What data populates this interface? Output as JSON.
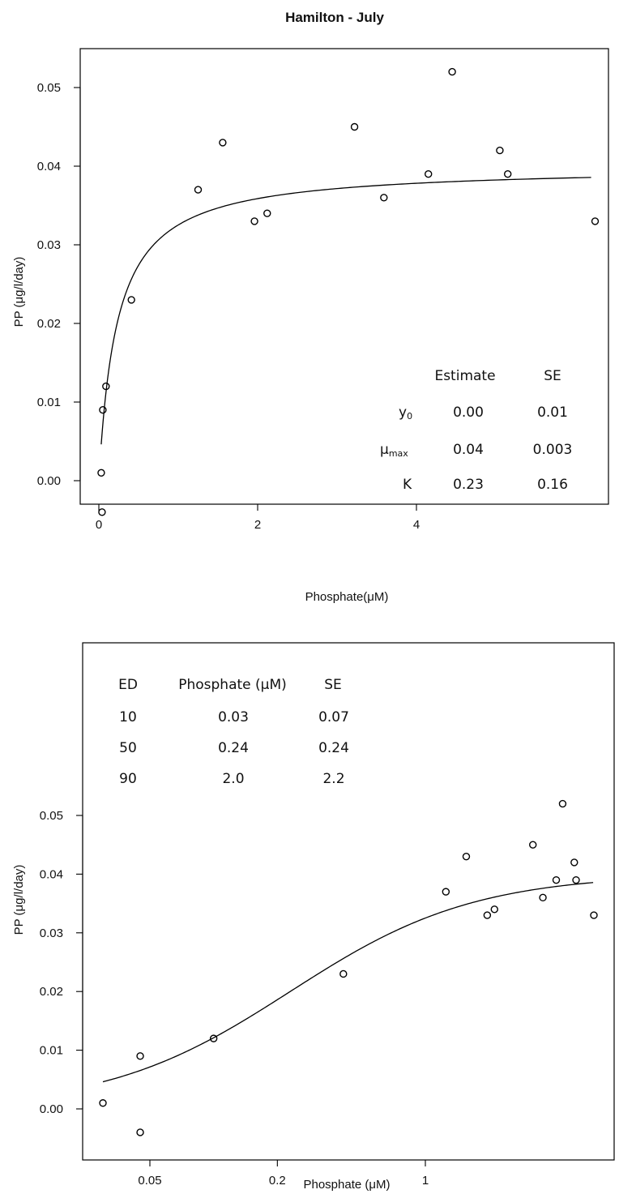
{
  "figure_title": "Hamilton - July",
  "chart_data": [
    {
      "type": "scatter",
      "title": "Hamilton - July",
      "xlabel": "Phosphate(μM)",
      "ylabel": "PP (μg/l/day)",
      "x_scale": "linear",
      "xlim": [
        -0.2,
        6.3
      ],
      "ylim": [
        -0.006,
        0.055
      ],
      "x_ticks": [
        {
          "value": 0,
          "label": "0"
        },
        {
          "value": 2,
          "label": "2"
        },
        {
          "value": 4,
          "label": "4"
        }
      ],
      "y_ticks": [
        {
          "value": 0.0,
          "label": "0.00"
        },
        {
          "value": 0.01,
          "label": "0.01"
        },
        {
          "value": 0.02,
          "label": "0.02"
        },
        {
          "value": 0.03,
          "label": "0.03"
        },
        {
          "value": 0.04,
          "label": "0.04"
        },
        {
          "value": 0.05,
          "label": "0.05"
        }
      ],
      "points": {
        "x": [
          0.03,
          0.04,
          0.05,
          0.09,
          0.41,
          1.25,
          1.56,
          1.96,
          2.12,
          3.22,
          3.59,
          4.15,
          4.45,
          5.05,
          5.15,
          6.25
        ],
        "y": [
          0.001,
          -0.004,
          0.009,
          0.012,
          0.023,
          0.037,
          0.043,
          0.033,
          0.034,
          0.045,
          0.036,
          0.039,
          0.052,
          0.042,
          0.039,
          0.033
        ]
      },
      "fit_curve": {
        "model": "michaelis-menten",
        "y0": 0.0,
        "mu_max": 0.04,
        "K": 0.23,
        "x_range": [
          0.03,
          6.2
        ]
      },
      "table": {
        "headers": [
          "",
          "Estimate",
          "SE"
        ],
        "rows": [
          {
            "param": "y0",
            "param_main": "y",
            "param_sub": "0",
            "estimate": "0.00",
            "se": "0.01"
          },
          {
            "param": "μmax",
            "param_main": "μ",
            "param_sub": "max",
            "estimate": "0.04",
            "se": "0.003"
          },
          {
            "param": "K",
            "param_main": "K",
            "param_sub": "",
            "estimate": "0.23",
            "se": "0.16"
          }
        ]
      }
    },
    {
      "type": "scatter",
      "title": "",
      "xlabel": "Phosphate (μM)",
      "ylabel": "PP (μg/l/day)",
      "x_scale": "log",
      "xlim": [
        0.02,
        5.0
      ],
      "ylim": [
        -0.006,
        0.055
      ],
      "x_ticks": [
        {
          "value": 0.05,
          "label": "0.05"
        },
        {
          "value": 0.2,
          "label": "0.2"
        },
        {
          "value": 1,
          "label": "1"
        }
      ],
      "y_ticks": [
        {
          "value": 0.0,
          "label": "0.00"
        },
        {
          "value": 0.01,
          "label": "0.01"
        },
        {
          "value": 0.02,
          "label": "0.02"
        },
        {
          "value": 0.03,
          "label": "0.03"
        },
        {
          "value": 0.04,
          "label": "0.04"
        },
        {
          "value": 0.05,
          "label": "0.05"
        }
      ],
      "points": {
        "x": [
          0.03,
          0.045,
          0.045,
          0.1,
          0.41,
          1.25,
          1.56,
          1.96,
          2.12,
          3.22,
          3.59,
          4.15,
          4.45,
          5.05,
          5.15,
          6.25
        ],
        "y": [
          0.001,
          -0.004,
          0.009,
          0.012,
          0.023,
          0.037,
          0.043,
          0.033,
          0.034,
          0.045,
          0.036,
          0.039,
          0.052,
          0.042,
          0.039,
          0.033
        ]
      },
      "fit_curve": {
        "model": "michaelis-menten",
        "y0": 0.0,
        "mu_max": 0.04,
        "K": 0.23,
        "x_range": [
          0.03,
          6.2
        ]
      },
      "table": {
        "headers": [
          "ED",
          "Phosphate (μM)",
          "SE"
        ],
        "rows": [
          {
            "ed": "10",
            "phosphate": "0.03",
            "se": "0.07"
          },
          {
            "ed": "50",
            "phosphate": "0.24",
            "se": "0.24"
          },
          {
            "ed": "90",
            "phosphate": "2.0",
            "se": "2.2"
          }
        ]
      }
    }
  ]
}
